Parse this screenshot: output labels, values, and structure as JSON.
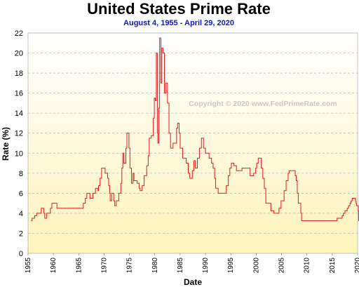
{
  "chart_data": {
    "type": "line",
    "title": "United States Prime Rate",
    "subtitle": "August 4, 1955  -  April 29, 2020",
    "xlabel": "Date",
    "ylabel": "Rate (%)",
    "copyright": "Copyright © 2020 www.FedPrimeRate.com",
    "xlim": [
      1955,
      2020
    ],
    "ylim": [
      0,
      22
    ],
    "yticks": [
      "0",
      "2",
      "4",
      "6",
      "8",
      "10",
      "12",
      "14",
      "16",
      "18",
      "20",
      "22"
    ],
    "xticks": [
      "1955",
      "1960",
      "1965",
      "1970",
      "1975",
      "1980",
      "1985",
      "1990",
      "1995",
      "2000",
      "2005",
      "2010",
      "2015",
      "2020"
    ],
    "grid": true,
    "background_gradient": [
      "#ffffff",
      "#fdf3bb"
    ],
    "line_color": "#e31a1c",
    "series": [
      {
        "name": "",
        "points": [
          [
            1955.6,
            3.25
          ],
          [
            1955.8,
            3.5
          ],
          [
            1956.3,
            3.75
          ],
          [
            1956.7,
            4.0
          ],
          [
            1957.6,
            4.5
          ],
          [
            1958.1,
            4.0
          ],
          [
            1958.3,
            3.5
          ],
          [
            1958.7,
            4.0
          ],
          [
            1959.4,
            4.5
          ],
          [
            1959.7,
            5.0
          ],
          [
            1960.7,
            4.5
          ],
          [
            1965.9,
            5.0
          ],
          [
            1966.3,
            5.5
          ],
          [
            1966.6,
            6.0
          ],
          [
            1967.2,
            5.5
          ],
          [
            1967.8,
            6.0
          ],
          [
            1968.3,
            6.5
          ],
          [
            1968.8,
            6.25
          ],
          [
            1968.9,
            6.75
          ],
          [
            1969.2,
            7.5
          ],
          [
            1969.5,
            8.5
          ],
          [
            1970.2,
            8.0
          ],
          [
            1970.7,
            7.5
          ],
          [
            1970.9,
            6.75
          ],
          [
            1971.1,
            6.0
          ],
          [
            1971.2,
            5.25
          ],
          [
            1971.5,
            6.0
          ],
          [
            1971.9,
            5.25
          ],
          [
            1972.1,
            4.75
          ],
          [
            1972.4,
            5.25
          ],
          [
            1972.9,
            6.0
          ],
          [
            1973.3,
            7.0
          ],
          [
            1973.5,
            8.5
          ],
          [
            1973.7,
            10.0
          ],
          [
            1973.9,
            9.0
          ],
          [
            1974.3,
            10.5
          ],
          [
            1974.5,
            12.0
          ],
          [
            1974.9,
            10.5
          ],
          [
            1975.1,
            8.5
          ],
          [
            1975.4,
            7.0
          ],
          [
            1975.7,
            8.0
          ],
          [
            1975.9,
            7.25
          ],
          [
            1976.5,
            7.0
          ],
          [
            1976.9,
            6.5
          ],
          [
            1977.1,
            6.25
          ],
          [
            1977.5,
            6.75
          ],
          [
            1977.9,
            7.75
          ],
          [
            1978.4,
            8.75
          ],
          [
            1978.7,
            9.75
          ],
          [
            1978.9,
            11.5
          ],
          [
            1979.3,
            11.75
          ],
          [
            1979.7,
            13.5
          ],
          [
            1979.9,
            15.5
          ],
          [
            1980.1,
            15.25
          ],
          [
            1980.3,
            20.0
          ],
          [
            1980.5,
            12.0
          ],
          [
            1980.6,
            11.0
          ],
          [
            1980.8,
            14.5
          ],
          [
            1980.95,
            21.5
          ],
          [
            1981.2,
            17.0
          ],
          [
            1981.4,
            20.5
          ],
          [
            1981.6,
            20.0
          ],
          [
            1981.9,
            16.0
          ],
          [
            1982.2,
            17.0
          ],
          [
            1982.5,
            15.0
          ],
          [
            1982.8,
            12.0
          ],
          [
            1983.1,
            10.5
          ],
          [
            1983.6,
            11.0
          ],
          [
            1984.3,
            12.5
          ],
          [
            1984.5,
            13.0
          ],
          [
            1984.8,
            12.0
          ],
          [
            1985.0,
            10.5
          ],
          [
            1985.5,
            9.5
          ],
          [
            1986.2,
            9.0
          ],
          [
            1986.6,
            8.0
          ],
          [
            1986.9,
            7.5
          ],
          [
            1987.4,
            8.25
          ],
          [
            1987.7,
            9.25
          ],
          [
            1988.0,
            8.5
          ],
          [
            1988.4,
            9.5
          ],
          [
            1988.8,
            10.5
          ],
          [
            1989.2,
            11.5
          ],
          [
            1989.6,
            10.5
          ],
          [
            1990.0,
            10.0
          ],
          [
            1990.7,
            9.5
          ],
          [
            1991.2,
            9.0
          ],
          [
            1991.5,
            8.5
          ],
          [
            1991.8,
            7.5
          ],
          [
            1992.0,
            6.5
          ],
          [
            1992.5,
            6.0
          ],
          [
            1994.1,
            6.75
          ],
          [
            1994.5,
            7.75
          ],
          [
            1994.8,
            8.5
          ],
          [
            1995.1,
            9.0
          ],
          [
            1995.6,
            8.75
          ],
          [
            1996.1,
            8.25
          ],
          [
            1997.2,
            8.5
          ],
          [
            1998.8,
            7.75
          ],
          [
            1999.5,
            8.0
          ],
          [
            1999.9,
            8.5
          ],
          [
            2000.1,
            9.0
          ],
          [
            2000.4,
            9.5
          ],
          [
            2001.0,
            8.5
          ],
          [
            2001.3,
            7.5
          ],
          [
            2001.6,
            6.5
          ],
          [
            2001.9,
            5.0
          ],
          [
            2002.9,
            4.25
          ],
          [
            2003.5,
            4.0
          ],
          [
            2004.5,
            4.5
          ],
          [
            2004.9,
            5.25
          ],
          [
            2005.5,
            6.25
          ],
          [
            2005.9,
            7.25
          ],
          [
            2006.3,
            8.0
          ],
          [
            2006.5,
            8.25
          ],
          [
            2007.7,
            7.75
          ],
          [
            2007.9,
            7.25
          ],
          [
            2008.1,
            6.0
          ],
          [
            2008.3,
            5.0
          ],
          [
            2008.8,
            4.0
          ],
          [
            2008.95,
            3.25
          ],
          [
            2015.95,
            3.5
          ],
          [
            2016.95,
            3.75
          ],
          [
            2017.2,
            4.0
          ],
          [
            2017.5,
            4.25
          ],
          [
            2017.95,
            4.5
          ],
          [
            2018.2,
            4.75
          ],
          [
            2018.5,
            5.0
          ],
          [
            2018.7,
            5.25
          ],
          [
            2018.95,
            5.5
          ],
          [
            2019.6,
            5.25
          ],
          [
            2019.7,
            5.0
          ],
          [
            2019.8,
            4.75
          ],
          [
            2020.15,
            4.25
          ],
          [
            2020.2,
            3.25
          ],
          [
            2020.33,
            3.25
          ]
        ]
      }
    ]
  }
}
